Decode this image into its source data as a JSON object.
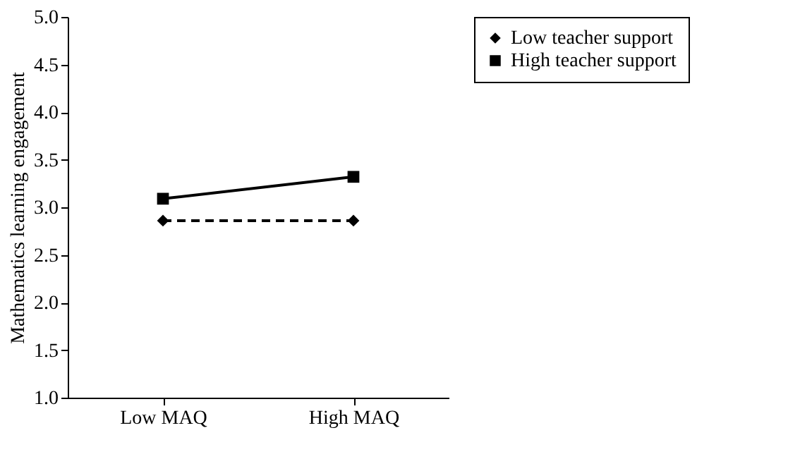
{
  "chart_data": {
    "type": "line",
    "ylabel": "Mathematics learning engagement",
    "categories": [
      "Low MAQ",
      "High MAQ"
    ],
    "series": [
      {
        "name": "Low teacher support",
        "color": "#000000",
        "values": [
          2.86,
          2.86
        ],
        "marker": "diamond",
        "line_style": "dashed"
      },
      {
        "name": "High teacher support",
        "color": "#000000",
        "values": [
          3.09,
          3.32
        ],
        "marker": "square",
        "line_style": "solid"
      }
    ],
    "ylim": [
      1,
      5
    ],
    "yticks": [
      {
        "value": 1,
        "label": "1.0"
      },
      {
        "value": 1.5,
        "label": "1.5"
      },
      {
        "value": 2,
        "label": "2.0"
      },
      {
        "value": 2.5,
        "label": "2.5"
      },
      {
        "value": 3,
        "label": "3.0"
      },
      {
        "value": 3.5,
        "label": "3.5"
      },
      {
        "value": 4,
        "label": "4.0"
      },
      {
        "value": 4.5,
        "label": "4.5"
      },
      {
        "value": 5,
        "label": "5.0"
      }
    ],
    "grid": false,
    "legend": "right"
  }
}
